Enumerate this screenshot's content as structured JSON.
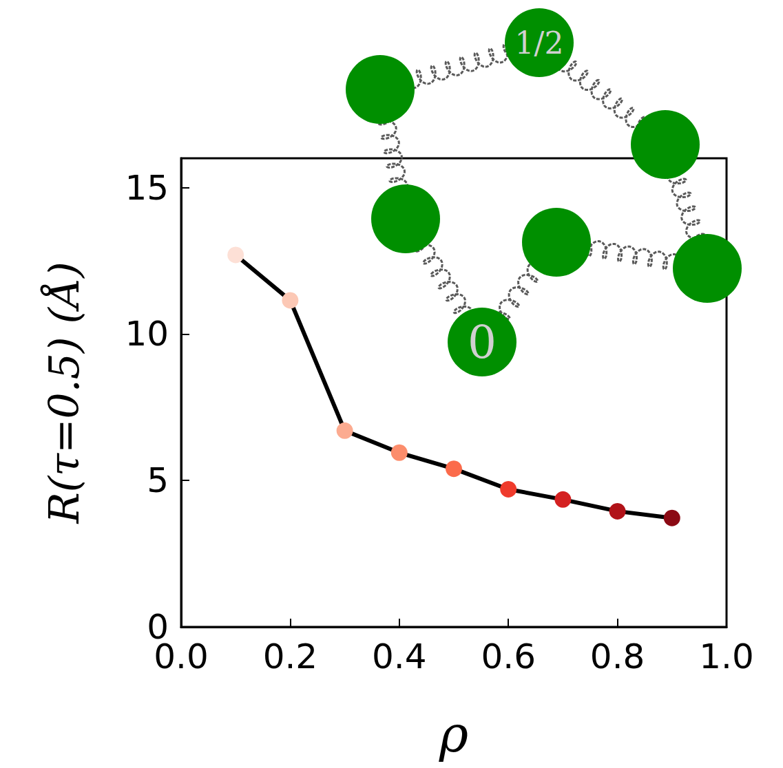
{
  "chart_data": {
    "type": "line",
    "x_label": "ρ",
    "y_label": "R(τ=0.5) (Å)",
    "x": [
      0.1,
      0.2,
      0.3,
      0.4,
      0.5,
      0.6,
      0.7,
      0.8,
      0.9
    ],
    "values": [
      12.7,
      11.15,
      6.7,
      5.95,
      5.4,
      4.7,
      4.35,
      3.95,
      3.72
    ],
    "color": "#000000",
    "colors": [
      "#fde0d6",
      "#fcc8b5",
      "#fcab90",
      "#fc8d6c",
      "#fb6b4b",
      "#ef3b2c",
      "#d42121",
      "#b11218",
      "#8b0a14"
    ],
    "marker": "circle",
    "line_style": "solid",
    "xlim": [
      0,
      1
    ],
    "xticks": [
      {
        "value": 0,
        "label": "0.0"
      },
      0.2,
      0.4,
      0.6,
      0.8,
      {
        "value": 1,
        "label": "1.0"
      }
    ],
    "ylim": [
      0,
      16
    ],
    "yticks": [
      0,
      5,
      10,
      15
    ],
    "grid": false,
    "annotations": [
      "0",
      "1/2"
    ]
  }
}
